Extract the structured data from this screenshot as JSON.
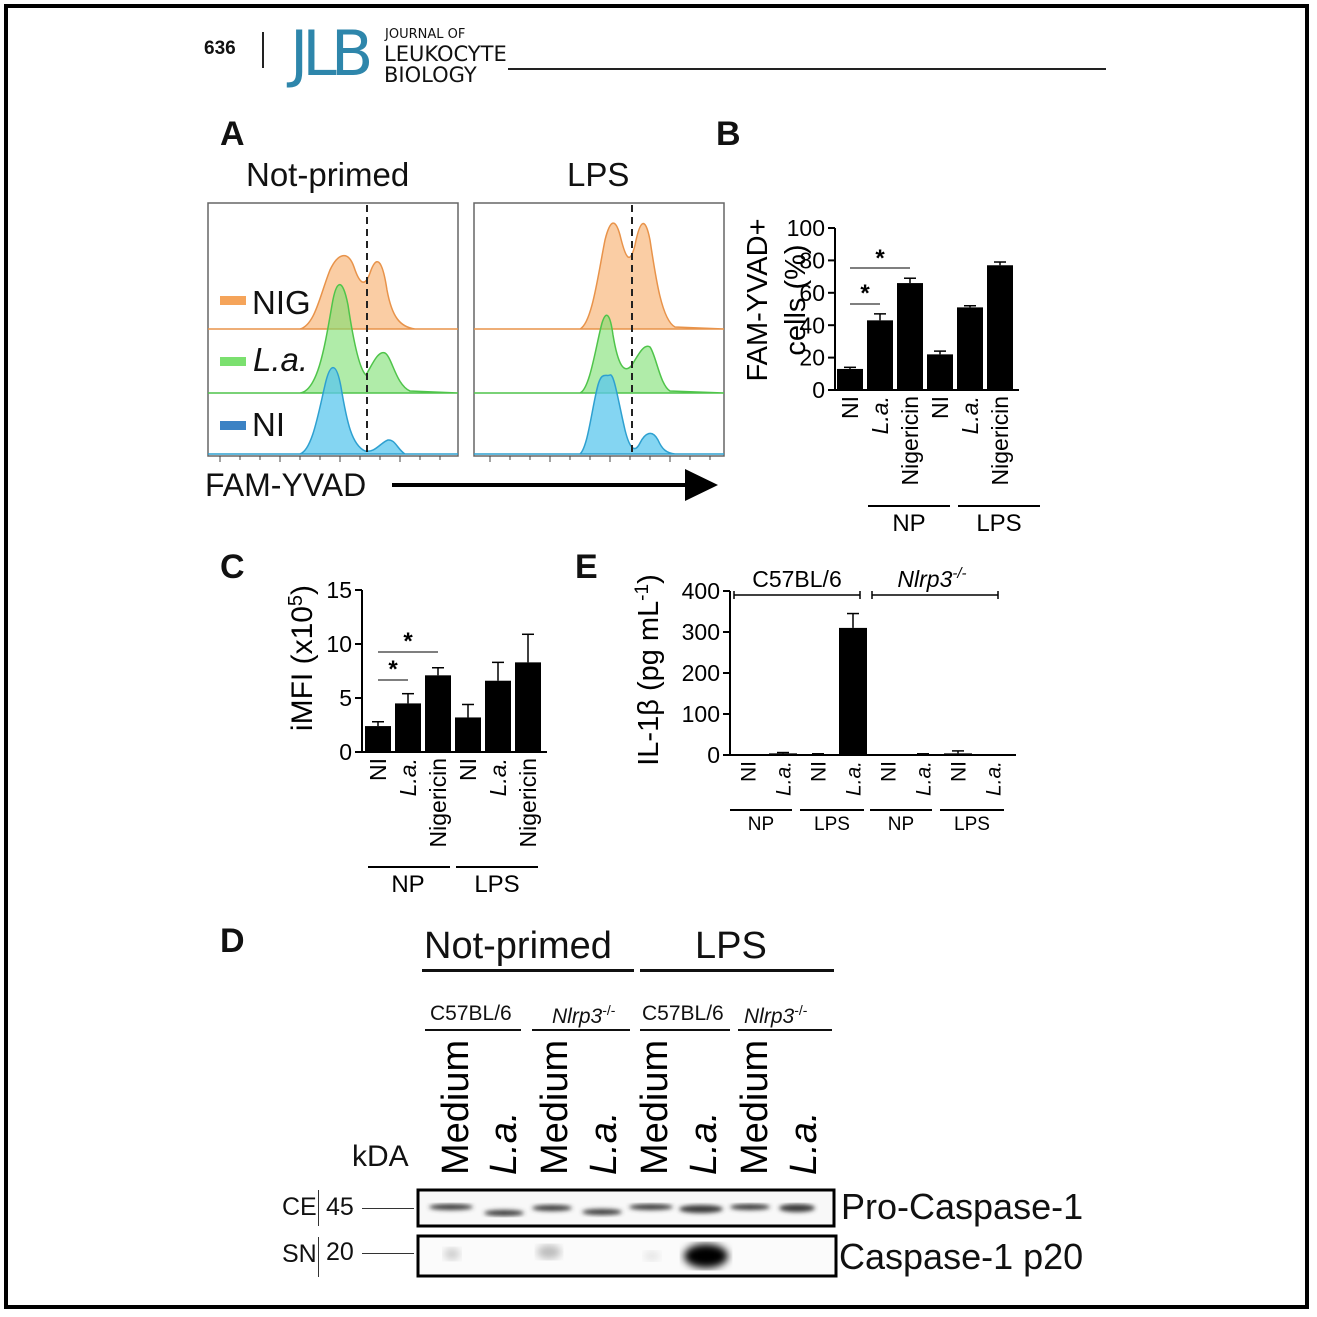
{
  "header": {
    "page_number": "636",
    "logo": "JLB",
    "journal_line1": "JOURNAL OF",
    "journal_line2": "LEUKOCYTE",
    "journal_line3": "BIOLOGY"
  },
  "colors": {
    "nig": "#f5a45a",
    "la": "#7be06f",
    "ni": "#5bc7ee",
    "logo": "#2e86ab"
  },
  "panel_A": {
    "label": "A",
    "title_left": "Not-primed",
    "title_right": "LPS",
    "legend": [
      {
        "name": "NIG",
        "color": "#f5a45a"
      },
      {
        "name": "L.a.",
        "color": "#7be06f"
      },
      {
        "name": "NI",
        "color": "#3b82c4"
      }
    ],
    "x_label": "FAM-YVAD"
  },
  "chart_data": [
    {
      "panel": "B",
      "type": "bar",
      "ylabel_line1": "FAM-YVAD+",
      "ylabel_line2": "cells (%)",
      "ylim": [
        0,
        100
      ],
      "yticks": [
        "0",
        "20",
        "40",
        "60",
        "80",
        "100"
      ],
      "categories": [
        "NI",
        "L.a.",
        "Nigericin",
        "NI",
        "L.a.",
        "Nigericin"
      ],
      "values": [
        13,
        43,
        66,
        22,
        51,
        77
      ],
      "errors": [
        1,
        4,
        3,
        2,
        1,
        2
      ],
      "groups": [
        "NP",
        "LPS"
      ],
      "annotations": [
        "*",
        "*"
      ]
    },
    {
      "panel": "C",
      "type": "bar",
      "ylabel": "iMFI (x10",
      "ylabel_exp": "5",
      "ylabel_close": ")",
      "ylim": [
        0,
        15
      ],
      "yticks": [
        "0",
        "5",
        "10",
        "15"
      ],
      "categories": [
        "NI",
        "L.a.",
        "Nigericin",
        "NI",
        "L.a.",
        "Nigericin"
      ],
      "values": [
        2.4,
        4.5,
        7.1,
        3.2,
        6.6,
        8.3
      ],
      "errors": [
        0.4,
        0.9,
        0.7,
        1.2,
        1.7,
        2.6
      ],
      "groups": [
        "NP",
        "LPS"
      ],
      "annotations": [
        "*",
        "*"
      ]
    },
    {
      "panel": "E",
      "type": "bar",
      "ylabel": "IL-1β (pg mL",
      "ylabel_exp": "-1",
      "ylabel_close": ")",
      "ylim": [
        0,
        400
      ],
      "yticks": [
        "0",
        "100",
        "200",
        "300",
        "400"
      ],
      "categories": [
        "NI",
        "L.a.",
        "NI",
        "L.a.",
        "NI",
        "L.a.",
        "NI",
        "L.a."
      ],
      "values": [
        0,
        4,
        1,
        310,
        0,
        1,
        4,
        0
      ],
      "errors": [
        0,
        2,
        2,
        35,
        0,
        2,
        6,
        0
      ],
      "groups": [
        "NP",
        "LPS",
        "NP",
        "LPS"
      ],
      "strains": [
        "C57BL/6",
        "Nlrp3"
      ],
      "strain_exp": "-/-"
    }
  ],
  "panel_B": {
    "label": "B"
  },
  "panel_C": {
    "label": "C"
  },
  "panel_E": {
    "label": "E"
  },
  "panel_D": {
    "label": "D",
    "conditions": [
      "Not-primed",
      "LPS"
    ],
    "strains": [
      "C57BL/6",
      "Nlrp3",
      "C57BL/6",
      "Nlrp3"
    ],
    "strain_exp": "-/-",
    "lanes": [
      "Medium",
      "L.a.",
      "Medium",
      "L.a.",
      "Medium",
      "L.a.",
      "Medium",
      "L.a."
    ],
    "kda_label": "kDA",
    "rows": [
      {
        "fraction": "CE",
        "kda": "45",
        "name": "Pro-Caspase-1"
      },
      {
        "fraction": "SN",
        "kda": "20",
        "name": "Caspase-1 p20"
      }
    ]
  }
}
